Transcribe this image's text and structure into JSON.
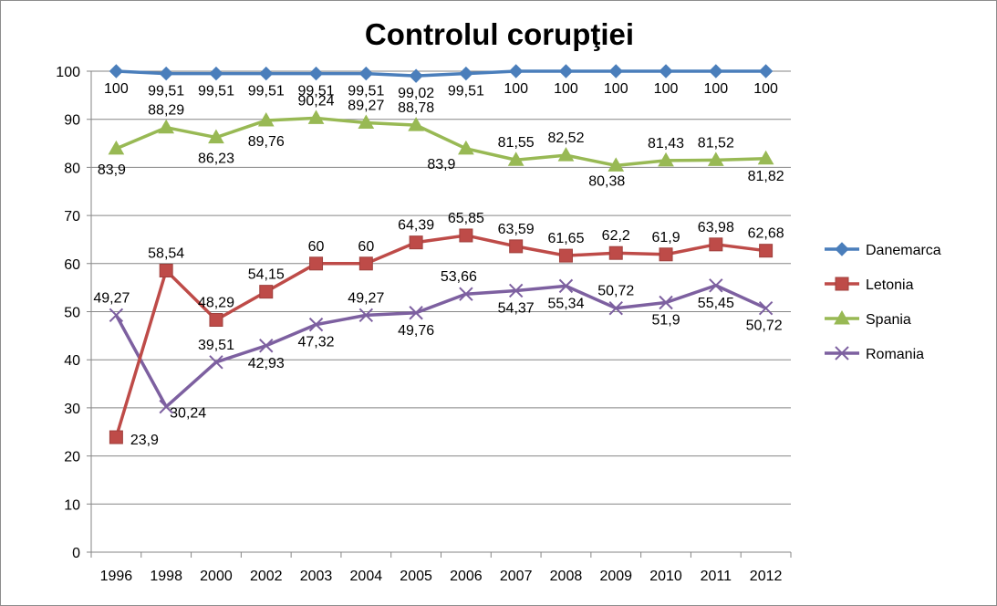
{
  "chart_data": {
    "type": "line",
    "title": "Controlul corupţiei",
    "categories": [
      "1996",
      "1998",
      "2000",
      "2002",
      "2003",
      "2004",
      "2005",
      "2006",
      "2007",
      "2008",
      "2009",
      "2010",
      "2011",
      "2012"
    ],
    "ylim": [
      0,
      100
    ],
    "yticks": [
      0,
      10,
      20,
      30,
      40,
      50,
      60,
      70,
      80,
      90,
      100
    ],
    "grid": true,
    "legend_position": "right",
    "series": [
      {
        "name": "Danemarca",
        "color": "#4a7ebb",
        "marker": "diamond",
        "values": [
          100,
          99.51,
          99.51,
          99.51,
          99.51,
          99.51,
          99.02,
          99.51,
          100,
          100,
          100,
          100,
          100,
          100
        ],
        "labels": [
          "100",
          "99,51",
          "99,51",
          "99,51",
          "99,51",
          "99,51",
          "99,02",
          "99,51",
          "100",
          "100",
          "100",
          "100",
          "100",
          "100"
        ]
      },
      {
        "name": "Letonia",
        "color": "#be4b48",
        "marker": "square",
        "values": [
          23.9,
          58.54,
          48.29,
          54.15,
          60,
          60,
          64.39,
          65.85,
          63.59,
          61.65,
          62.2,
          61.9,
          63.98,
          62.68
        ],
        "labels": [
          "23,9",
          "58,54",
          "48,29",
          "54,15",
          "60",
          "60",
          "64,39",
          "65,85",
          "63,59",
          "61,65",
          "62,2",
          "61,9",
          "63,98",
          "62,68"
        ]
      },
      {
        "name": "Spania",
        "color": "#98b954",
        "marker": "triangle",
        "values": [
          83.9,
          88.29,
          86.23,
          89.76,
          90.24,
          89.27,
          88.78,
          83.9,
          81.55,
          82.52,
          80.38,
          81.43,
          81.52,
          81.82
        ],
        "labels": [
          "83,9",
          "88,29",
          "86,23",
          "89,76",
          "90,24",
          "89,27",
          "88,78",
          "83,9",
          "81,55",
          "82,52",
          "80,38",
          "81,43",
          "81,52",
          "81,82"
        ]
      },
      {
        "name": "Romania",
        "color": "#7d60a0",
        "marker": "x",
        "values": [
          49.27,
          30.24,
          39.51,
          42.93,
          47.32,
          49.27,
          49.76,
          53.66,
          54.37,
          55.34,
          50.72,
          51.9,
          55.45,
          50.72
        ],
        "labels": [
          "49,27",
          "30,24",
          "39,51",
          "42,93",
          "47,32",
          "49,27",
          "49,76",
          "53,66",
          "54,37",
          "55,34",
          "50,72",
          "51,9",
          "55,45",
          "50,72"
        ]
      }
    ]
  }
}
